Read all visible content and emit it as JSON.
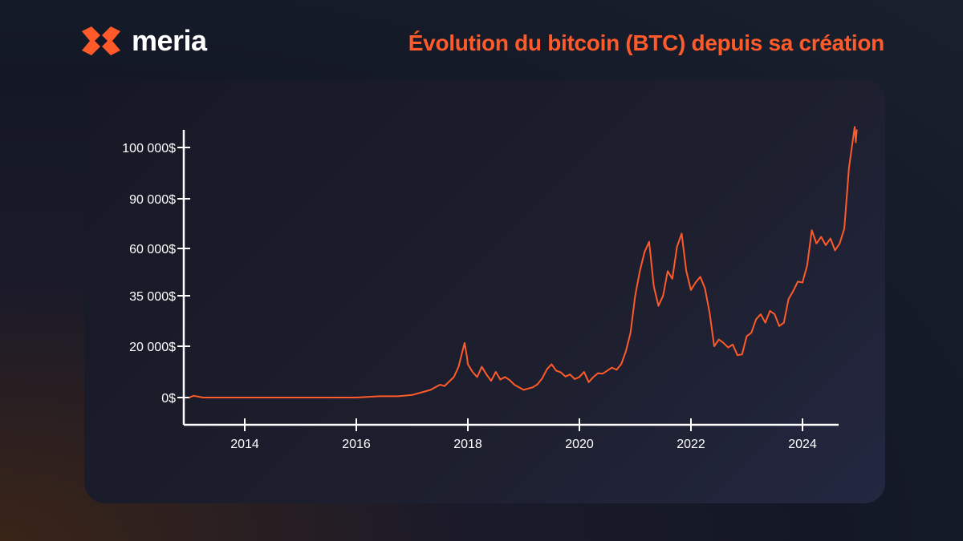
{
  "brand": {
    "name": "meria",
    "logo_icon": "meria-logo-icon",
    "accent": "#ff5a2a"
  },
  "headline": "Évolution du bitcoin (BTC) depuis sa création",
  "chart_data": {
    "type": "line",
    "title": "Évolution du bitcoin (BTC) depuis sa création",
    "xlabel": "",
    "ylabel": "",
    "line_color": "#ff5a2a",
    "grid": false,
    "x_ticks": [
      "2014",
      "2016",
      "2018",
      "2020",
      "2022",
      "2024"
    ],
    "y_ticks": [
      "0$",
      "20 000$",
      "35 000$",
      "60 000$",
      "90 000$",
      "100 000$"
    ],
    "xlim": [
      "2013-01",
      "2024-12"
    ],
    "series": [
      {
        "values": [
          [
            "2013-01",
            0
          ],
          [
            "2013-02",
            700
          ],
          [
            "2013-04",
            0
          ],
          [
            "2013-12",
            0
          ],
          [
            "2014-06",
            0
          ],
          [
            "2015-06",
            0
          ],
          [
            "2016-01",
            0
          ],
          [
            "2016-06",
            500
          ],
          [
            "2016-10",
            500
          ],
          [
            "2017-01",
            1000
          ],
          [
            "2017-03",
            2000
          ],
          [
            "2017-05",
            3000
          ],
          [
            "2017-07",
            5000
          ],
          [
            "2017-08",
            4500
          ],
          [
            "2017-10",
            8000
          ],
          [
            "2017-11",
            12000
          ],
          [
            "2017-12-10",
            21000
          ],
          [
            "2017-12-25",
            16000
          ],
          [
            "2018-01",
            13000
          ],
          [
            "2018-02",
            10000
          ],
          [
            "2018-03",
            8000
          ],
          [
            "2018-04",
            12000
          ],
          [
            "2018-05",
            9000
          ],
          [
            "2018-06",
            6500
          ],
          [
            "2018-07",
            10000
          ],
          [
            "2018-08",
            7000
          ],
          [
            "2018-09",
            8000
          ],
          [
            "2018-10",
            6800
          ],
          [
            "2018-11",
            5000
          ],
          [
            "2018-12",
            4000
          ],
          [
            "2019-01",
            3000
          ],
          [
            "2019-03",
            4000
          ],
          [
            "2019-04",
            5200
          ],
          [
            "2019-05",
            7500
          ],
          [
            "2019-06",
            11000
          ],
          [
            "2019-07",
            13000
          ],
          [
            "2019-08",
            10500
          ],
          [
            "2019-09",
            9800
          ],
          [
            "2019-10",
            8200
          ],
          [
            "2019-11",
            9000
          ],
          [
            "2019-12",
            7200
          ],
          [
            "2020-01",
            8000
          ],
          [
            "2020-02",
            10000
          ],
          [
            "2020-03",
            6000
          ],
          [
            "2020-04",
            8000
          ],
          [
            "2020-05",
            9500
          ],
          [
            "2020-06",
            9300
          ],
          [
            "2020-07",
            10500
          ],
          [
            "2020-08",
            11700
          ],
          [
            "2020-09",
            10800
          ],
          [
            "2020-10",
            13000
          ],
          [
            "2020-11",
            18000
          ],
          [
            "2020-12",
            24000
          ],
          [
            "2021-01",
            35000
          ],
          [
            "2021-02",
            48000
          ],
          [
            "2021-03",
            58000
          ],
          [
            "2021-04",
            64000
          ],
          [
            "2021-05",
            40000
          ],
          [
            "2021-06",
            32000
          ],
          [
            "2021-07",
            35000
          ],
          [
            "2021-08",
            48000
          ],
          [
            "2021-09",
            44000
          ],
          [
            "2021-10",
            61000
          ],
          [
            "2021-11",
            69000
          ],
          [
            "2021-12",
            48000
          ],
          [
            "2022-01",
            38000
          ],
          [
            "2022-02",
            42000
          ],
          [
            "2022-03",
            45000
          ],
          [
            "2022-04",
            39000
          ],
          [
            "2022-05",
            30000
          ],
          [
            "2022-06",
            20000
          ],
          [
            "2022-07",
            22000
          ],
          [
            "2022-08",
            21000
          ],
          [
            "2022-09",
            19500
          ],
          [
            "2022-10",
            20500
          ],
          [
            "2022-11",
            16500
          ],
          [
            "2022-12",
            16800
          ],
          [
            "2023-01",
            23000
          ],
          [
            "2023-02",
            24000
          ],
          [
            "2023-03",
            28000
          ],
          [
            "2023-04",
            29500
          ],
          [
            "2023-05",
            27000
          ],
          [
            "2023-06",
            30500
          ],
          [
            "2023-07",
            29500
          ],
          [
            "2023-08",
            26000
          ],
          [
            "2023-09",
            27000
          ],
          [
            "2023-10",
            34000
          ],
          [
            "2023-11",
            37500
          ],
          [
            "2023-12",
            42500
          ],
          [
            "2024-01",
            42000
          ],
          [
            "2024-02",
            51000
          ],
          [
            "2024-03",
            71000
          ],
          [
            "2024-04",
            63000
          ],
          [
            "2024-05",
            67000
          ],
          [
            "2024-06",
            62000
          ],
          [
            "2024-07",
            66000
          ],
          [
            "2024-08",
            59000
          ],
          [
            "2024-09",
            63000
          ],
          [
            "2024-10",
            72000
          ],
          [
            "2024-11",
            96000
          ],
          [
            "2024-12-08",
            104000
          ],
          [
            "2024-12-15",
            101000
          ],
          [
            "2024-12-22",
            103500
          ]
        ]
      }
    ]
  }
}
